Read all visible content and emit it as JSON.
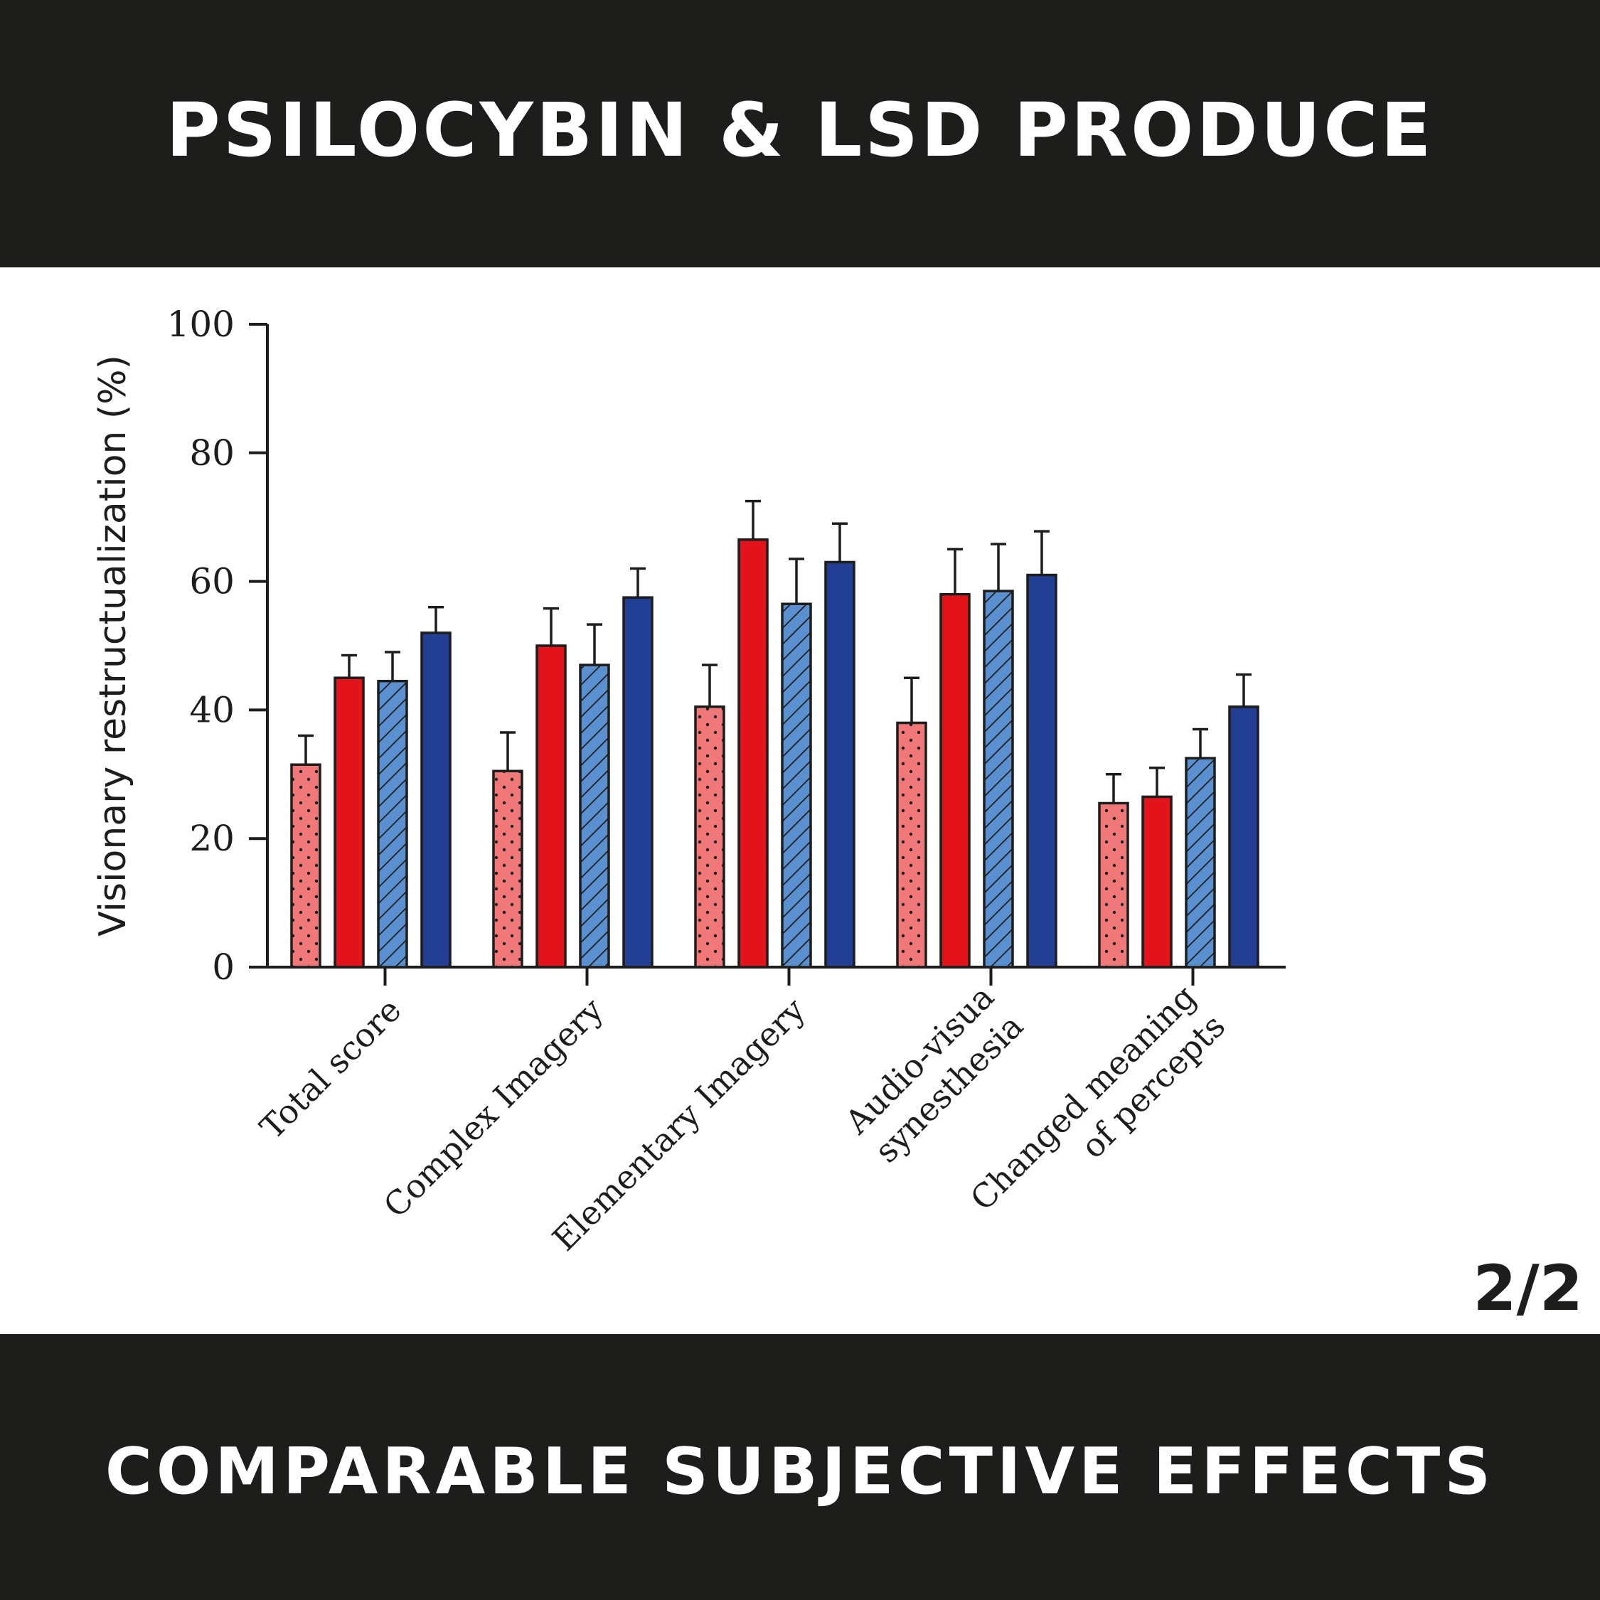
{
  "header": {
    "title": "PSILOCYBIN & LSD PRODUCE"
  },
  "footer": {
    "title": "COMPARABLE SUBJECTIVE EFFECTS"
  },
  "page_indicator": "2/2",
  "colors": {
    "background_band": "#1d1d1b",
    "panel": "#ffffff",
    "light_red": "#f07878",
    "red": "#e3131b",
    "light_blue": "#5a8fd0",
    "dark_blue": "#233f94",
    "ink": "#1d1d1b"
  },
  "chart_data": {
    "type": "bar",
    "title": "",
    "xlabel": "",
    "ylabel": "Visionary restructualization (%)",
    "ylim": [
      0,
      100
    ],
    "yticks": [
      0,
      20,
      40,
      60,
      80,
      100
    ],
    "grid": false,
    "legend": false,
    "categories": [
      [
        "Total score"
      ],
      [
        "Complex Imagery"
      ],
      [
        "Elementary Imagery"
      ],
      [
        "Audio-visua",
        "synesthesia"
      ],
      [
        "Changed meaning",
        "of percepts"
      ]
    ],
    "series": [
      {
        "fill": "#f07878",
        "pattern": "dots",
        "values": [
          31.5,
          30.5,
          40.5,
          38,
          25.5
        ],
        "errors": [
          4.5,
          6,
          6.5,
          7,
          4.5
        ]
      },
      {
        "fill": "#e3131b",
        "pattern": "solid",
        "values": [
          45,
          50,
          66.5,
          58,
          26.5
        ],
        "errors": [
          3.5,
          5.8,
          6,
          7,
          4.5
        ]
      },
      {
        "fill": "#5a8fd0",
        "pattern": "hatch",
        "values": [
          44.5,
          47,
          56.5,
          58.5,
          32.5
        ],
        "errors": [
          4.5,
          6.3,
          7,
          7.3,
          4.5
        ]
      },
      {
        "fill": "#233f94",
        "pattern": "solid",
        "values": [
          52,
          57.5,
          63,
          61,
          40.5
        ],
        "errors": [
          4,
          4.5,
          6,
          6.8,
          5
        ]
      }
    ]
  }
}
